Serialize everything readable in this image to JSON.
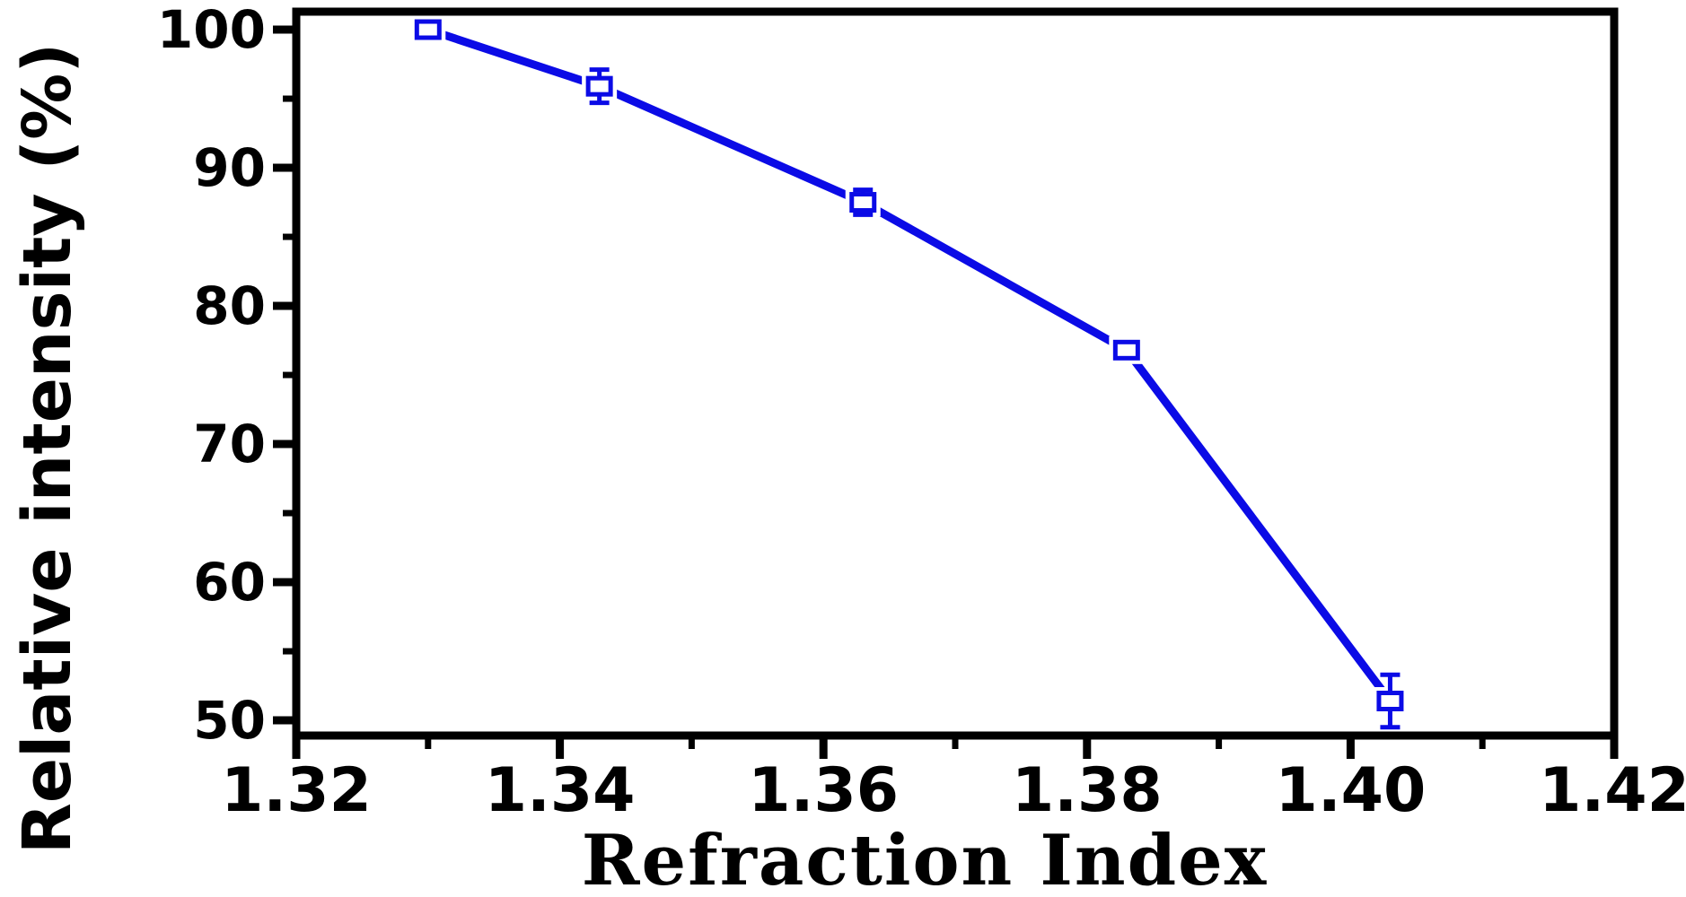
{
  "figure": {
    "background_color": "#ffffff",
    "axis_color": "#000000",
    "series_color": "#0b0be6"
  },
  "chart_data": {
    "type": "line",
    "title": "",
    "xlabel": "Refraction Index",
    "ylabel": "Relative intensity (%)",
    "xlim": [
      1.32,
      1.42
    ],
    "ylim": [
      48.9,
      101.3
    ],
    "grid": false,
    "legend": null,
    "x_major_ticks": [
      1.32,
      1.34,
      1.36,
      1.38,
      1.4,
      1.42
    ],
    "x_major_tick_labels": [
      "1.32",
      "1.34",
      "1.36",
      "1.38",
      "1.40",
      "1.42"
    ],
    "x_minor_ticks": [
      1.33,
      1.35,
      1.37,
      1.39,
      1.41
    ],
    "y_major_ticks": [
      50,
      60,
      70,
      80,
      90,
      100
    ],
    "y_major_tick_labels": [
      "50",
      "60",
      "70",
      "80",
      "90",
      "100"
    ],
    "y_minor_ticks": [
      55,
      65,
      75,
      85,
      95
    ],
    "series": [
      {
        "name": "relative-intensity-vs-refraction-index",
        "color": "#0b0be6",
        "marker": "open-square",
        "line_style": "solid",
        "x": [
          1.33,
          1.343,
          1.363,
          1.383,
          1.403
        ],
        "y": [
          100.0,
          95.9,
          87.5,
          76.8,
          51.4
        ],
        "yerr": [
          null,
          1.2,
          0.9,
          null,
          1.9
        ]
      }
    ]
  }
}
